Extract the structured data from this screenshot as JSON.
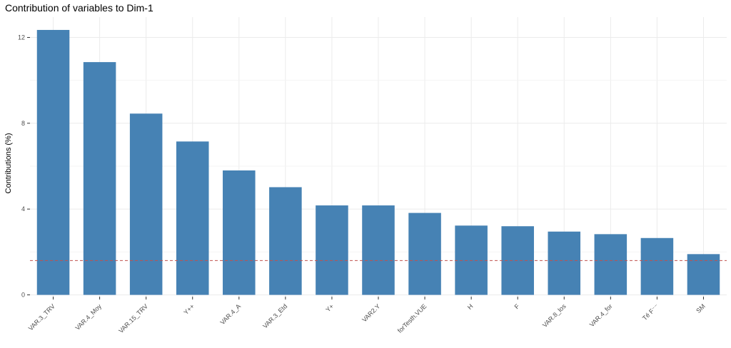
{
  "chart_data": {
    "type": "bar",
    "title": "Contribution of variables to Dim-1",
    "xlabel": "",
    "ylabel": "Contributions (%)",
    "categories": [
      "VAR.3_TRV",
      "VAR.4_Moy",
      "VAR.15_TRV",
      "Y++",
      "VAR.4_A",
      "VAR.3_Etd",
      "Y+",
      "VAR2.Y",
      "forTesth.VUE",
      "H",
      "F",
      "VAR.8_los",
      "VAR.4_for",
      "Té F⁻⁻",
      "SM"
    ],
    "values": [
      12.35,
      10.85,
      8.45,
      7.15,
      5.8,
      5.02,
      4.17,
      4.17,
      3.82,
      3.23,
      3.2,
      2.95,
      2.83,
      2.65,
      1.9
    ],
    "ylim": [
      0,
      13
    ],
    "yticks": [
      0,
      4,
      8,
      12
    ],
    "reference_line": {
      "value": 1.6,
      "style": "dashed",
      "color": "#c0504d"
    },
    "bar_color": "#4682b4",
    "grid": true,
    "legend": "none"
  }
}
